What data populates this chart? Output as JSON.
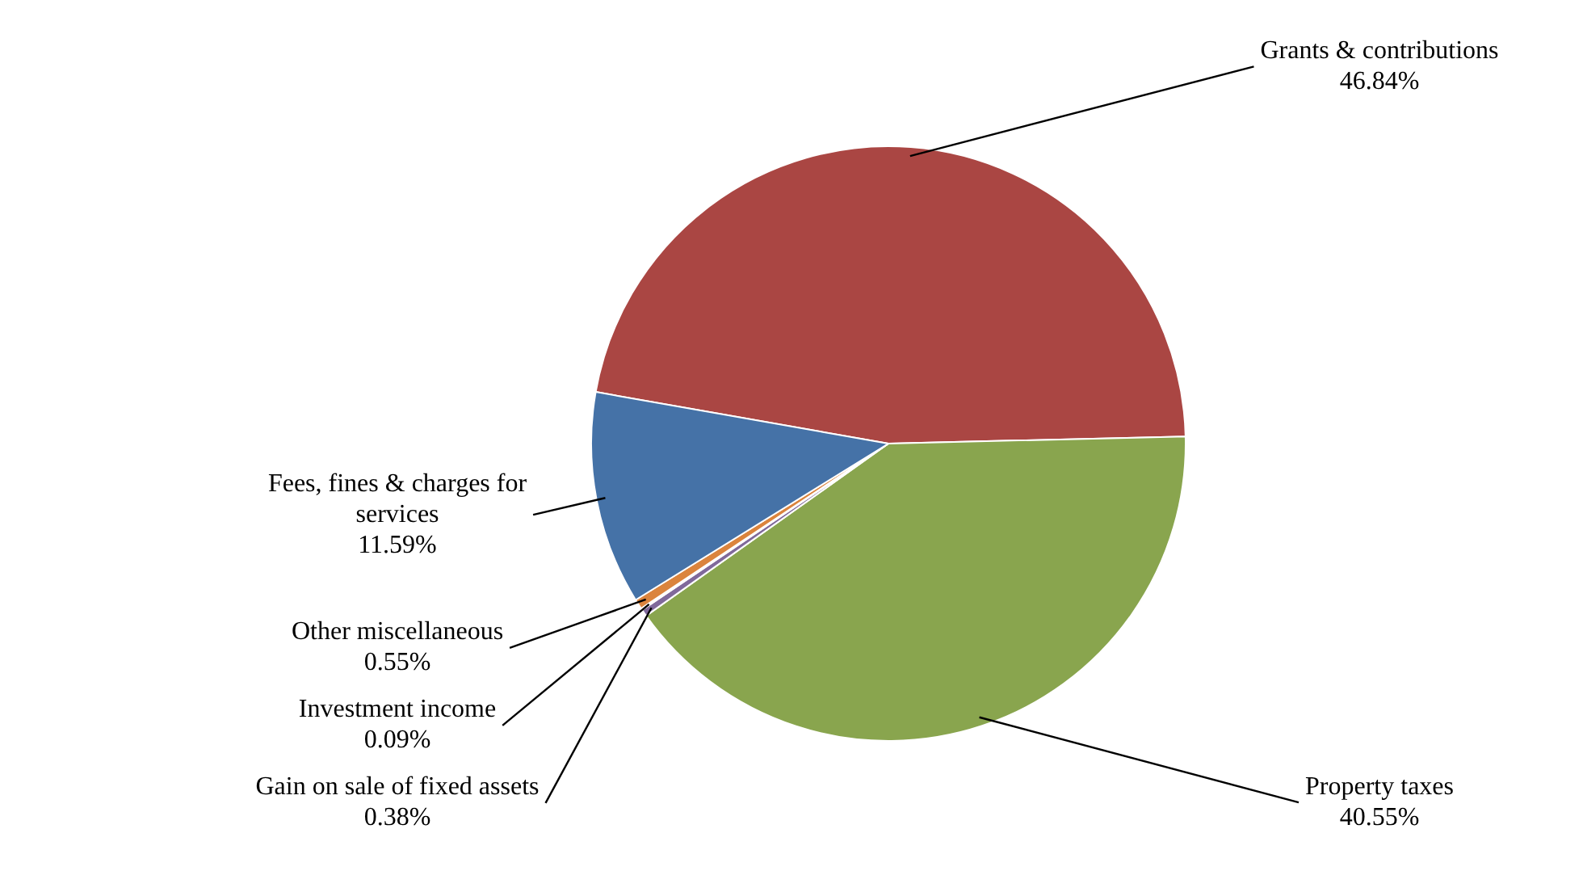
{
  "chart_data": {
    "type": "pie",
    "categories": [
      "Grants & contributions",
      "Property taxes",
      "Gain on sale of fixed assets",
      "Investment income",
      "Other miscellaneous",
      "Fees, fines & charges for services"
    ],
    "values": [
      46.84,
      40.55,
      0.38,
      0.09,
      0.55,
      11.59
    ],
    "value_labels": [
      "46.84%",
      "40.55%",
      "0.38%",
      "0.09%",
      "0.55%",
      "11.59%"
    ],
    "colors": [
      "#aa4643",
      "#89a54e",
      "#80699b",
      "#4198af",
      "#db843d",
      "#4572a7"
    ],
    "legend": false
  }
}
